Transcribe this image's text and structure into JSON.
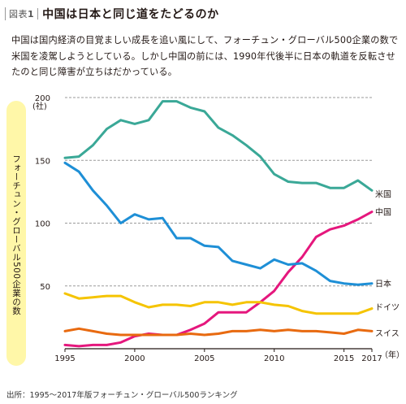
{
  "figure": {
    "label": "図表",
    "number": "1",
    "title": "中国は日本と同じ道をたどるのか"
  },
  "description": "中国は国内経済の目覚ましい成長を追い風にして、フォーチュン・グローバル500企業の数で米国を凌駕しようとしている。しかし中国の前には、1990年代後半に日本の軌道を反転させたのと同じ障害が立ちはだかっている。",
  "source": "出所：1995〜2017年版フォーチュン・グローバル500ランキング",
  "colors": {
    "us": "#3aa897",
    "china": "#e5177d",
    "japan": "#1e8fd6",
    "germany": "#f5c400",
    "switzerland": "#e86a10",
    "grid": "#9a9a9a",
    "ylabel_bg": "#fff7a8"
  },
  "chart_data": {
    "type": "line",
    "title": "",
    "xlabel": "（年）",
    "ylabel": "フォーチュン・グローバル500企業の数",
    "yunit": "(社)",
    "xlim": [
      1995,
      2017
    ],
    "ylim": [
      0,
      200
    ],
    "xticks": [
      "1995",
      "2000",
      "2005",
      "2010",
      "2015",
      "2017"
    ],
    "yticks": [
      "50",
      "100",
      "150",
      "200"
    ],
    "grid": "horizontal dashed",
    "x": [
      1995,
      1996,
      1997,
      1998,
      1999,
      2000,
      2001,
      2002,
      2003,
      2004,
      2005,
      2006,
      2007,
      2008,
      2009,
      2010,
      2011,
      2012,
      2013,
      2014,
      2015,
      2016,
      2017
    ],
    "series": [
      {
        "name": "米国",
        "key": "us",
        "values": [
          152,
          153,
          162,
          175,
          182,
          179,
          182,
          197,
          197,
          192,
          189,
          176,
          170,
          162,
          153,
          139,
          133,
          132,
          132,
          128,
          128,
          134,
          126
        ]
      },
      {
        "name": "中国",
        "key": "china",
        "values": [
          3,
          2,
          3,
          3,
          5,
          10,
          12,
          11,
          11,
          15,
          20,
          29,
          29,
          29,
          37,
          46,
          61,
          73,
          89,
          95,
          98,
          103,
          109
        ]
      },
      {
        "name": "日本",
        "key": "japan",
        "values": [
          148,
          141,
          126,
          114,
          100,
          107,
          103,
          104,
          88,
          88,
          82,
          81,
          70,
          67,
          64,
          71,
          67,
          68,
          62,
          54,
          52,
          51,
          52
        ]
      },
      {
        "name": "ドイツ",
        "key": "germany",
        "values": [
          44,
          40,
          41,
          42,
          42,
          37,
          33,
          35,
          35,
          34,
          37,
          37,
          35,
          37,
          37,
          35,
          34,
          30,
          28,
          28,
          28,
          28,
          32
        ]
      },
      {
        "name": "スイス",
        "key": "switzerland",
        "values": [
          14,
          16,
          14,
          12,
          11,
          11,
          11,
          11,
          11,
          12,
          11,
          12,
          14,
          14,
          15,
          14,
          15,
          14,
          14,
          13,
          12,
          15,
          14
        ]
      }
    ]
  }
}
